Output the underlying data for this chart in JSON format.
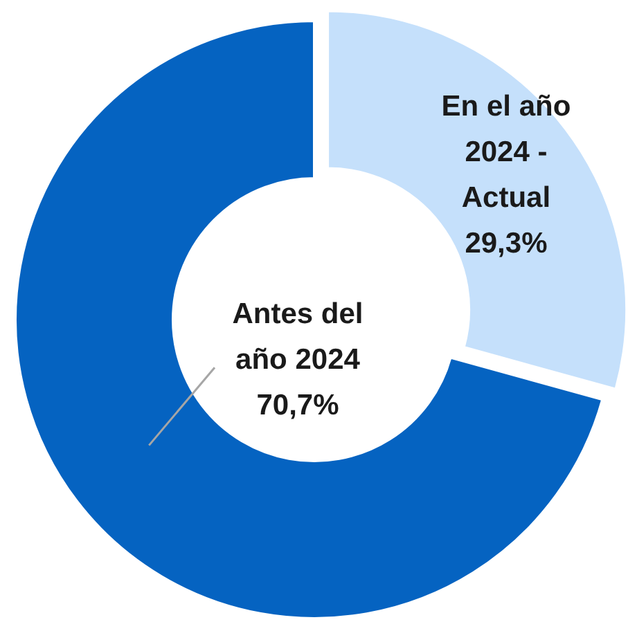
{
  "chart_data": {
    "type": "donut",
    "categories": [
      "En el año 2024 - Actual",
      "Antes del año 2024"
    ],
    "values": [
      29.3,
      70.7
    ],
    "colors": [
      "#c5e0fb",
      "#0563c1"
    ],
    "value_labels": [
      "29,3%",
      "70,7%"
    ]
  }
}
